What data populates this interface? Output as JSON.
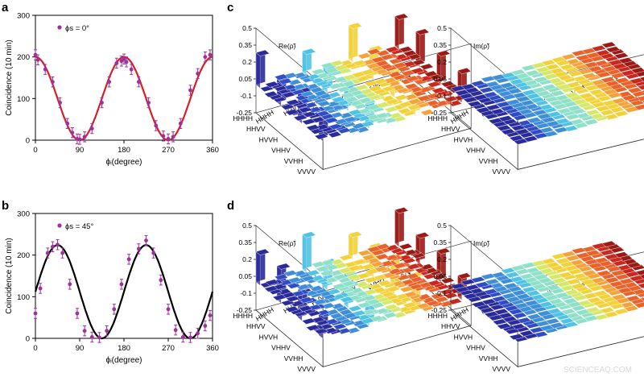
{
  "panels": {
    "a": "a",
    "b": "b",
    "c": "c",
    "d": "d"
  },
  "watermark": "SCIENCEAQ.COM",
  "chart_data": [
    {
      "id": "a",
      "type": "scatter",
      "xlabel": "ϕᵢ(degree)",
      "ylabel": "Coincidence (10 min)",
      "xlim": [
        0,
        360
      ],
      "ylim": [
        0,
        300
      ],
      "xticks": [
        "0",
        "90",
        "180",
        "270",
        "360"
      ],
      "yticks": [
        "0",
        "100",
        "200",
        "300"
      ],
      "legend": "ϕs = 0°",
      "point_color": "#a0309c",
      "curve_color": "#d41f26",
      "points": [
        [
          0,
          205
        ],
        [
          5,
          193
        ],
        [
          20,
          170
        ],
        [
          35,
          140
        ],
        [
          50,
          90
        ],
        [
          65,
          40
        ],
        [
          75,
          18
        ],
        [
          85,
          3
        ],
        [
          90,
          2
        ],
        [
          100,
          8
        ],
        [
          115,
          28
        ],
        [
          135,
          90
        ],
        [
          150,
          140
        ],
        [
          165,
          185
        ],
        [
          175,
          190
        ],
        [
          180,
          195
        ],
        [
          185,
          188
        ],
        [
          195,
          170
        ],
        [
          210,
          140
        ],
        [
          230,
          90
        ],
        [
          245,
          35
        ],
        [
          260,
          10
        ],
        [
          270,
          3
        ],
        [
          280,
          8
        ],
        [
          295,
          40
        ],
        [
          315,
          120
        ],
        [
          330,
          160
        ],
        [
          345,
          200
        ],
        [
          355,
          205
        ]
      ],
      "errors": 12,
      "fit": {
        "A": 100,
        "offset": 100,
        "period": 180,
        "phase": 0
      }
    },
    {
      "id": "b",
      "type": "scatter",
      "xlabel": "ϕᵢ(degree)",
      "ylabel": "Coincidence (10 min)",
      "xlim": [
        0,
        360
      ],
      "ylim": [
        0,
        300
      ],
      "xticks": [
        "0",
        "90",
        "180",
        "270",
        "360"
      ],
      "yticks": [
        "0",
        "100",
        "200",
        "300"
      ],
      "legend": "ϕs = 45°",
      "point_color": "#a0309c",
      "curve_color": "#000000",
      "points": [
        [
          0,
          60
        ],
        [
          10,
          120
        ],
        [
          25,
          205
        ],
        [
          35,
          220
        ],
        [
          45,
          225
        ],
        [
          55,
          205
        ],
        [
          70,
          130
        ],
        [
          85,
          60
        ],
        [
          100,
          18
        ],
        [
          115,
          3
        ],
        [
          130,
          2
        ],
        [
          145,
          18
        ],
        [
          160,
          70
        ],
        [
          175,
          130
        ],
        [
          190,
          190
        ],
        [
          210,
          215
        ],
        [
          225,
          235
        ],
        [
          240,
          205
        ],
        [
          255,
          140
        ],
        [
          270,
          70
        ],
        [
          285,
          20
        ],
        [
          300,
          3
        ],
        [
          315,
          2
        ],
        [
          330,
          12
        ],
        [
          345,
          30
        ],
        [
          355,
          55
        ]
      ],
      "errors": 12,
      "fit": {
        "A": 112,
        "offset": 112,
        "period": 180,
        "phase": 45
      }
    },
    {
      "id": "c",
      "type": "bar3d",
      "subplots": [
        {
          "label": "Re(ρ̃)",
          "ylim": [
            "0.5",
            "0.35",
            "0.2",
            "0.05",
            "-0.1",
            "-0.25"
          ]
        },
        {
          "label": "Im(ρ̃)",
          "ylim": [
            "0.5",
            "0.35",
            "0.2",
            "0.05",
            "-0.1",
            "-0.25"
          ]
        }
      ],
      "basis": [
        "HHHH",
        "HHVV",
        "HVVH",
        "VHHV",
        "VVHH",
        "VVVV"
      ],
      "basis_right": [
        "HHHH",
        "HHVV",
        "HVVH",
        "VHHV",
        "VVHH",
        "VVVV"
      ]
    },
    {
      "id": "d",
      "type": "bar3d",
      "subplots": [
        {
          "label": "Re(ρ̃)",
          "ylim": [
            "0.5",
            "0.35",
            "0.2",
            "0.05",
            "-0.1",
            "-0.25"
          ]
        },
        {
          "label": "Im(ρ̃)",
          "ylim": [
            "0.5",
            "0.35",
            "0.2",
            "0.05",
            "-0.1",
            "-0.25"
          ]
        }
      ],
      "basis": [
        "HHHH",
        "HHVV",
        "HVVH",
        "VHHV",
        "VVHH",
        "VVVV"
      ],
      "basis_right": [
        "HHHH",
        "HHVV",
        "HVVH",
        "VHHV",
        "VVHH",
        "VVVV"
      ]
    }
  ]
}
